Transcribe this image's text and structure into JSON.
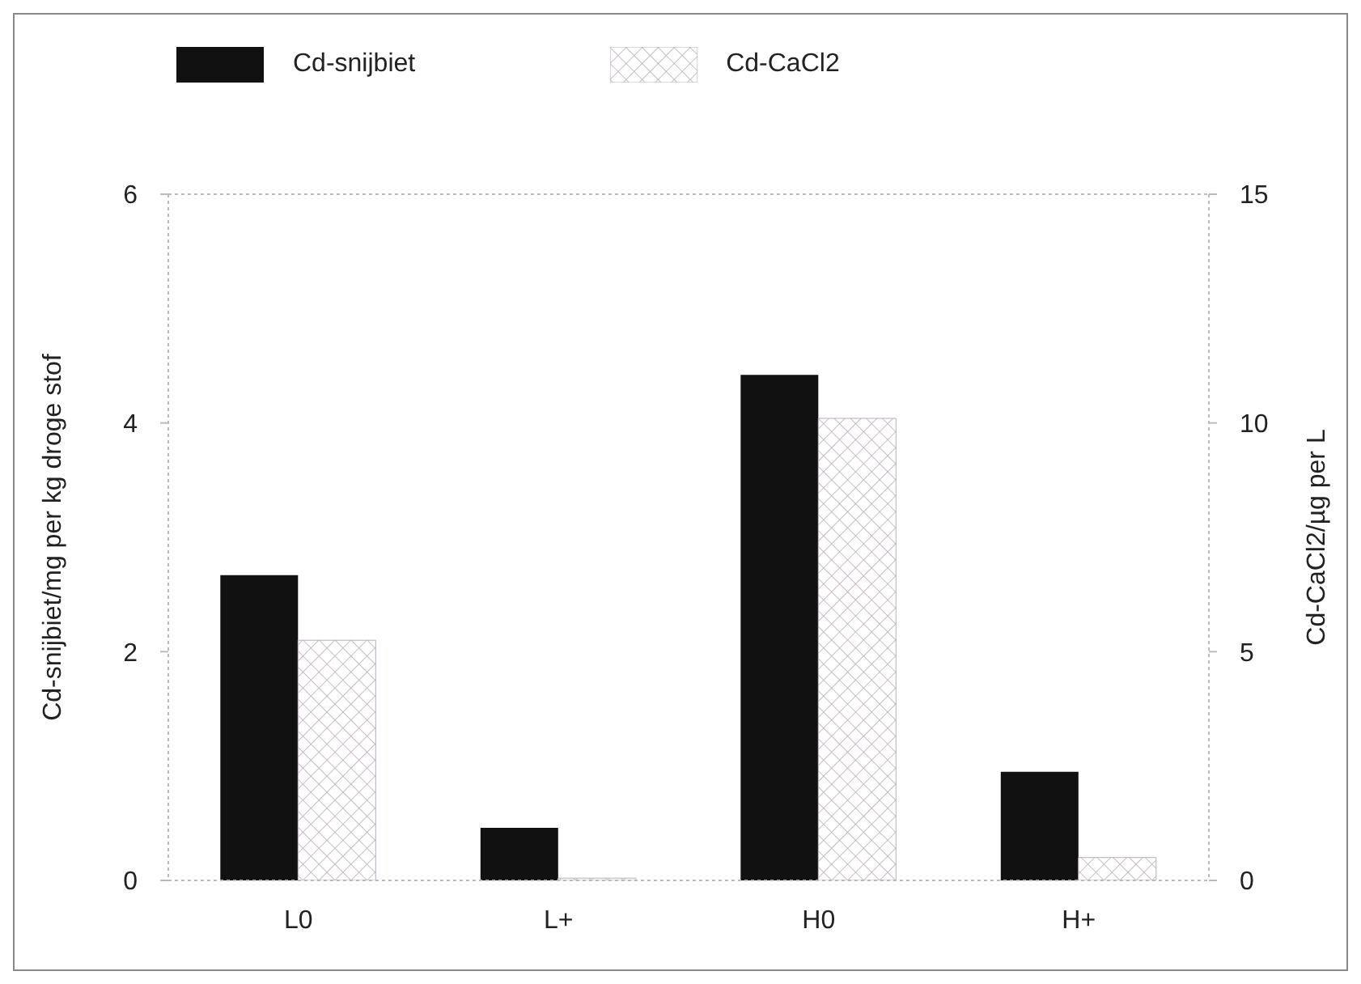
{
  "chart_data": {
    "type": "bar",
    "categories": [
      "L0",
      "L+",
      "H0",
      "H+"
    ],
    "series": [
      {
        "name": "Cd-snijbiet",
        "color": "#111111",
        "values": [
          2.67,
          0.46,
          4.42,
          0.95
        ]
      },
      {
        "name": "Cd-CaCl2",
        "color": "#b8aeb8",
        "axis": "y2",
        "values": [
          5.25,
          0.05,
          10.1,
          0.5
        ]
      }
    ],
    "ylabel": "Cd-snijbiet/mg per kg droge stof",
    "y2label": "Cd-CaCl2/µg per L",
    "ylim": [
      0,
      6
    ],
    "yticks": [
      0,
      2,
      4,
      6
    ],
    "y2lim": [
      0,
      15
    ],
    "y2ticks": [
      0,
      5,
      10,
      15
    ],
    "legend": "top left"
  }
}
